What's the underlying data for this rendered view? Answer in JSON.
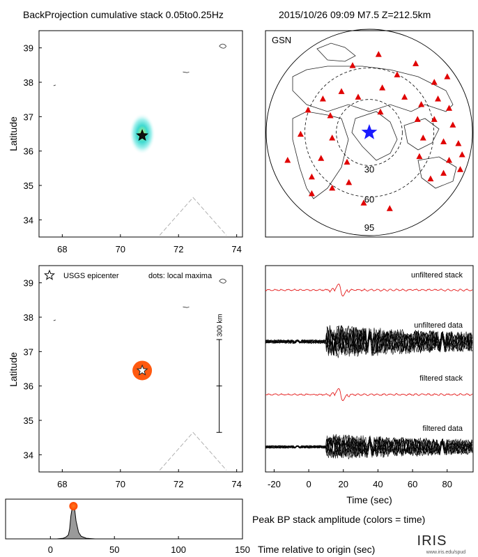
{
  "header": {
    "title": "BackProjection cumulative stack 0.05to0.25Hz",
    "event": "2015/10/26 09:09   M7.5   Z=212.5km"
  },
  "colors": {
    "station": "#e00000",
    "epicenter_blue": "#1a1aff",
    "red_trace": "#e41b1b",
    "peak_dot": "#ff5a10",
    "bp_glow": "#3fd9d0",
    "bp_core": "#f5f000",
    "histogram_fill": "#9a9a9a"
  },
  "chart_data": [
    {
      "id": "map-cumulative",
      "type": "heatmap",
      "ylabel": "Latitude",
      "xlim": [
        67.2,
        74.2
      ],
      "ylim": [
        33.5,
        39.5
      ],
      "xticks": [
        68,
        70,
        72,
        74
      ],
      "yticks": [
        34,
        35,
        36,
        37,
        38,
        39
      ],
      "epicenter": {
        "lon": 70.75,
        "lat": 36.45
      },
      "energy": {
        "center_lon": 70.75,
        "center_lat": 36.5,
        "spread_lon": 0.45,
        "spread_lat": 0.6
      }
    },
    {
      "id": "gsn-map",
      "type": "scatter",
      "network_label": "GSN",
      "distance_rings": [
        "30",
        "60",
        "95"
      ],
      "epicenter_marker": "blue star",
      "stations": [
        [
          -0.18,
          -0.72
        ],
        [
          0.1,
          -0.84
        ],
        [
          0.3,
          -0.62
        ],
        [
          0.5,
          -0.74
        ],
        [
          0.7,
          -0.54
        ],
        [
          0.84,
          -0.6
        ],
        [
          -0.5,
          -0.36
        ],
        [
          -0.3,
          -0.44
        ],
        [
          -0.12,
          -0.38
        ],
        [
          0.14,
          -0.48
        ],
        [
          0.38,
          -0.38
        ],
        [
          0.56,
          -0.3
        ],
        [
          0.74,
          -0.36
        ],
        [
          0.86,
          -0.26
        ],
        [
          -0.66,
          -0.24
        ],
        [
          -0.42,
          -0.18
        ],
        [
          0.12,
          -0.22
        ],
        [
          0.52,
          -0.14
        ],
        [
          0.7,
          -0.14
        ],
        [
          0.9,
          -0.08
        ],
        [
          -0.74,
          0.02
        ],
        [
          -0.4,
          0.06
        ],
        [
          0.58,
          0.06
        ],
        [
          0.8,
          0.1
        ],
        [
          0.96,
          0.12
        ],
        [
          -0.88,
          0.3
        ],
        [
          -0.52,
          0.28
        ],
        [
          -0.24,
          0.32
        ],
        [
          0.54,
          0.26
        ],
        [
          0.86,
          0.3
        ],
        [
          1.0,
          0.24
        ],
        [
          -0.62,
          0.48
        ],
        [
          -0.4,
          0.6
        ],
        [
          -0.22,
          0.54
        ],
        [
          0.66,
          0.5
        ],
        [
          0.8,
          0.44
        ],
        [
          0.98,
          0.4
        ],
        [
          -0.06,
          0.76
        ],
        [
          0.22,
          0.82
        ],
        [
          -0.62,
          0.66
        ]
      ]
    },
    {
      "id": "map-local-maxima",
      "type": "scatter",
      "ylabel": "Latitude",
      "xlim": [
        67.2,
        74.2
      ],
      "ylim": [
        33.5,
        39.5
      ],
      "xticks": [
        68,
        70,
        72,
        74
      ],
      "yticks": [
        34,
        35,
        36,
        37,
        38,
        39
      ],
      "legend": {
        "epicenter": "USGS epicenter",
        "dots": "dots: local maxima"
      },
      "epicenter": {
        "lon": 70.75,
        "lat": 36.45
      },
      "local_maxima": [
        {
          "lon": 70.75,
          "lat": 36.45,
          "time": 18
        }
      ],
      "scale_bar": {
        "label": "300 km",
        "lat_min": 34.65,
        "lat_max": 37.35,
        "lon": 73.4
      }
    },
    {
      "id": "traces",
      "type": "line",
      "xlabel": "Time (sec)",
      "xlim": [
        -25,
        95
      ],
      "xticks": [
        -20,
        0,
        20,
        40,
        60,
        80
      ],
      "series": [
        {
          "name": "unfiltered stack",
          "offset": 0,
          "color": "red",
          "amplitude": 0.6
        },
        {
          "name": "unfiltered data",
          "offset": 1,
          "color": "black",
          "amplitude": 1.8
        },
        {
          "name": "filtered stack",
          "offset": 2,
          "color": "red",
          "amplitude": 0.6
        },
        {
          "name": "filtered data",
          "offset": 3,
          "color": "black",
          "amplitude": 1.4
        }
      ]
    },
    {
      "id": "peak-amplitude",
      "type": "area",
      "title": "Peak BP stack amplitude (colors = time)",
      "xlabel": "Time relative to origin (sec)",
      "xlim": [
        -35,
        150
      ],
      "xticks": [
        0,
        50,
        100,
        150
      ],
      "peak": {
        "x": 18,
        "y": 1.0
      },
      "x": [
        -35,
        5,
        10,
        12,
        14,
        15,
        16,
        17,
        18,
        19,
        20,
        22,
        24,
        28,
        35,
        150
      ],
      "y": [
        0,
        0,
        0.02,
        0.05,
        0.12,
        0.3,
        0.7,
        0.95,
        1.0,
        0.9,
        0.55,
        0.2,
        0.08,
        0.02,
        0,
        0
      ]
    }
  ],
  "logo": {
    "text": "IRIS",
    "url": "www.iris.edu/spud"
  }
}
